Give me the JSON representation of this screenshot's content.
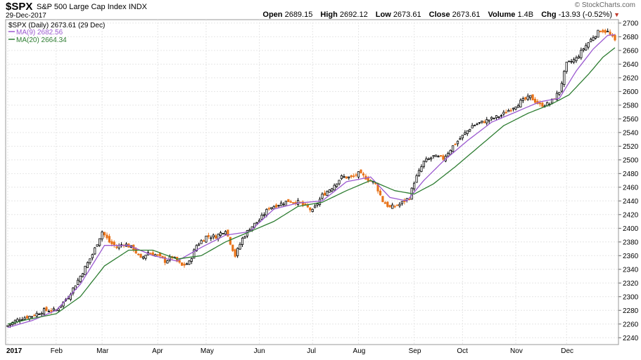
{
  "header": {
    "symbol": "$SPX",
    "description": "S&P 500 Large Cap Index",
    "exchange": "INDX",
    "date": "29-Dec-2017",
    "brand": "© StockCharts.com",
    "open_label": "Open",
    "open": "2689.15",
    "high_label": "High",
    "high": "2692.12",
    "low_label": "Low",
    "low": "2673.61",
    "close_label": "Close",
    "close": "2673.61",
    "volume_label": "Volume",
    "volume": "1.4B",
    "chg_label": "Chg",
    "chg": "-13.93 (-0.52%)"
  },
  "legend": [
    {
      "text": "$SPX (Daily) 2673.61 (29 Dec)",
      "color": "#000000"
    },
    {
      "text": "MA(9) 2682.56",
      "color": "#9b59d0"
    },
    {
      "text": "MA(20) 2664.34",
      "color": "#2e7d32"
    }
  ],
  "chart_data": {
    "type": "line",
    "ylim": [
      2230,
      2705
    ],
    "yticks": [
      2240,
      2260,
      2280,
      2300,
      2320,
      2340,
      2360,
      2380,
      2400,
      2420,
      2440,
      2460,
      2480,
      2500,
      2520,
      2540,
      2560,
      2580,
      2600,
      2620,
      2640,
      2660,
      2680,
      2700
    ],
    "xticks": [
      "2017",
      "Feb",
      "Mar",
      "Apr",
      "May",
      "Jun",
      "Jul",
      "Aug",
      "Sep",
      "Oct",
      "Nov",
      "Dec"
    ],
    "xtick_days": [
      0,
      20,
      39,
      62,
      82,
      104,
      126,
      145,
      168,
      188,
      210,
      231
    ],
    "total_days": 251,
    "up_color": "#000000",
    "down_color": "#e8731a",
    "close_key": [
      [
        0,
        2258
      ],
      [
        5,
        2268
      ],
      [
        10,
        2272
      ],
      [
        15,
        2280
      ],
      [
        20,
        2280
      ],
      [
        25,
        2300
      ],
      [
        30,
        2330
      ],
      [
        35,
        2362
      ],
      [
        39,
        2395
      ],
      [
        42,
        2380
      ],
      [
        45,
        2372
      ],
      [
        48,
        2378
      ],
      [
        52,
        2370
      ],
      [
        55,
        2355
      ],
      [
        58,
        2365
      ],
      [
        62,
        2360
      ],
      [
        65,
        2352
      ],
      [
        68,
        2358
      ],
      [
        72,
        2345
      ],
      [
        75,
        2350
      ],
      [
        78,
        2375
      ],
      [
        82,
        2388
      ],
      [
        86,
        2388
      ],
      [
        90,
        2398
      ],
      [
        94,
        2360
      ],
      [
        97,
        2385
      ],
      [
        100,
        2400
      ],
      [
        104,
        2412
      ],
      [
        108,
        2430
      ],
      [
        112,
        2435
      ],
      [
        116,
        2440
      ],
      [
        120,
        2438
      ],
      [
        124,
        2430
      ],
      [
        126,
        2425
      ],
      [
        130,
        2448
      ],
      [
        134,
        2460
      ],
      [
        138,
        2475
      ],
      [
        142,
        2474
      ],
      [
        145,
        2480
      ],
      [
        148,
        2474
      ],
      [
        152,
        2465
      ],
      [
        155,
        2440
      ],
      [
        158,
        2430
      ],
      [
        162,
        2435
      ],
      [
        166,
        2445
      ],
      [
        168,
        2468
      ],
      [
        172,
        2497
      ],
      [
        176,
        2505
      ],
      [
        180,
        2502
      ],
      [
        184,
        2520
      ],
      [
        188,
        2535
      ],
      [
        192,
        2550
      ],
      [
        196,
        2555
      ],
      [
        200,
        2560
      ],
      [
        204,
        2565
      ],
      [
        208,
        2575
      ],
      [
        212,
        2585
      ],
      [
        216,
        2592
      ],
      [
        220,
        2580
      ],
      [
        224,
        2582
      ],
      [
        228,
        2600
      ],
      [
        231,
        2640
      ],
      [
        235,
        2648
      ],
      [
        238,
        2663
      ],
      [
        242,
        2680
      ],
      [
        245,
        2690
      ],
      [
        248,
        2687
      ],
      [
        251,
        2674
      ]
    ],
    "ma9": {
      "name": "MA(9)",
      "color": "#9b59d0",
      "key": [
        [
          0,
          2255
        ],
        [
          10,
          2265
        ],
        [
          20,
          2280
        ],
        [
          30,
          2318
        ],
        [
          40,
          2375
        ],
        [
          50,
          2375
        ],
        [
          60,
          2360
        ],
        [
          70,
          2352
        ],
        [
          80,
          2372
        ],
        [
          90,
          2390
        ],
        [
          100,
          2395
        ],
        [
          110,
          2428
        ],
        [
          120,
          2437
        ],
        [
          130,
          2440
        ],
        [
          140,
          2468
        ],
        [
          150,
          2475
        ],
        [
          158,
          2445
        ],
        [
          165,
          2440
        ],
        [
          172,
          2470
        ],
        [
          180,
          2498
        ],
        [
          190,
          2528
        ],
        [
          200,
          2555
        ],
        [
          210,
          2570
        ],
        [
          220,
          2585
        ],
        [
          228,
          2590
        ],
        [
          235,
          2630
        ],
        [
          242,
          2662
        ],
        [
          248,
          2682
        ],
        [
          251,
          2683
        ]
      ]
    },
    "ma20": {
      "name": "MA(20)",
      "color": "#2e7d32",
      "key": [
        [
          0,
          2260
        ],
        [
          10,
          2268
        ],
        [
          20,
          2275
        ],
        [
          30,
          2300
        ],
        [
          40,
          2345
        ],
        [
          50,
          2368
        ],
        [
          60,
          2368
        ],
        [
          70,
          2355
        ],
        [
          80,
          2360
        ],
        [
          90,
          2380
        ],
        [
          100,
          2395
        ],
        [
          110,
          2410
        ],
        [
          120,
          2432
        ],
        [
          130,
          2438
        ],
        [
          140,
          2455
        ],
        [
          150,
          2470
        ],
        [
          160,
          2455
        ],
        [
          168,
          2450
        ],
        [
          176,
          2465
        ],
        [
          185,
          2490
        ],
        [
          195,
          2520
        ],
        [
          205,
          2550
        ],
        [
          215,
          2568
        ],
        [
          225,
          2582
        ],
        [
          232,
          2595
        ],
        [
          240,
          2625
        ],
        [
          246,
          2650
        ],
        [
          251,
          2664
        ]
      ]
    }
  }
}
